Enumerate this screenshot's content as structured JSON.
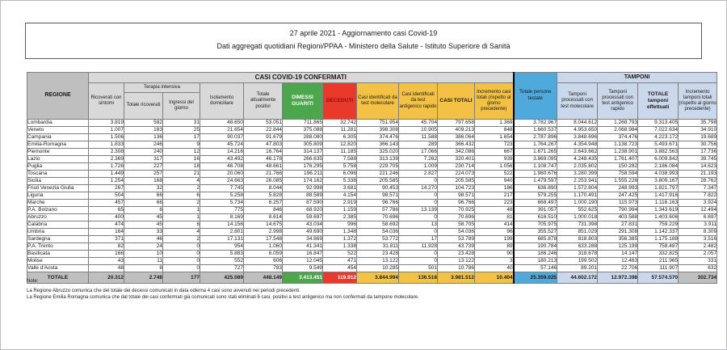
{
  "title": {
    "line1": "27 aprile 2021 - Aggiornamento casi Covid-19",
    "line2": "Dati aggregati quotidiani Regioni/PPAA - Ministero della Salute - Istituto Superiore di Sanità"
  },
  "table": {
    "header": {
      "regione": "REGIONE",
      "casi_confermati_band": "CASI COVID-19 CONFERMATI",
      "ricoverati": "Ricoverati con sintomi",
      "terapia_intensiva": "Terapia intensiva",
      "totale_ricoverati": "Totale ricoverati",
      "ingressi_giorno": "Ingressi del giorno",
      "isolamento": "Isolamento domiciliare",
      "attualmente_positivi": "Totale attualmente positivi",
      "dimessi_guariti": "DIMESSI GUARITI",
      "deceduti": "DECEDUTI",
      "casi_molecolare": "Casi identificati da test molecolare",
      "casi_antigenico": "Casi identificati da test antigenico rapido",
      "casi_totali": "CASI TOTALI",
      "incremento_casi": "Incremento casi totali (rispetto al giorno precedente)",
      "persone_testate": "Totale persone testate",
      "tamponi_band": "TAMPONI",
      "tamponi_molecolare": "Tamponi processati con test molecolare",
      "tamponi_antigenico": "Tamponi processati con test antigenico rapido",
      "tamponi_totale": "TOTALE tamponi effettuati",
      "incremento_tamponi": "Incremento tamponi totali (rispetto al giorno precedente)"
    },
    "rows": [
      {
        "region": "Lombardia",
        "values": [
          "3.819",
          "582",
          "31",
          "48.650",
          "53.051",
          "711.865",
          "32.742",
          "751.954",
          "45.704",
          "797.658",
          "1.369",
          "3.782.967",
          "8.044.612",
          "1.268.793",
          "9.313.405",
          "35.798"
        ]
      },
      {
        "region": "Veneto",
        "values": [
          "1.007",
          "183",
          "25",
          "21.654",
          "22.844",
          "375.088",
          "11.281",
          "398.308",
          "10.905",
          "409.213",
          "848",
          "1.660.537",
          "4.953.650",
          "2.068.984",
          "7.022.634",
          "34.910"
        ]
      },
      {
        "region": "Campania",
        "values": [
          "1.506",
          "136",
          "17",
          "90.037",
          "91.679",
          "288.080",
          "6.305",
          "374.476",
          "11.588",
          "386.064",
          "1.654",
          "2.787.896",
          "3.848.696",
          "374.476",
          "4.223.172",
          "19.689"
        ]
      },
      {
        "region": "Emilia-Romagna",
        "values": [
          "1.833",
          "246",
          "9",
          "45.724",
          "47.803",
          "305.809",
          "12.820",
          "366.143",
          "289",
          "366.432",
          "723",
          "1.764.267",
          "4.354.948",
          "1.138.723",
          "5.493.671",
          "30.756"
        ]
      },
      {
        "region": "Piemonte",
        "values": [
          "2.308",
          "240",
          "12",
          "14.216",
          "16.764",
          "314.137",
          "11.185",
          "325.020",
          "17.066",
          "342.086",
          "667",
          "1.671.265",
          "2.643.662",
          "1.238.901",
          "3.882.563",
          "17.736"
        ]
      },
      {
        "region": "Lazio",
        "values": [
          "2.369",
          "317",
          "16",
          "43.492",
          "46.178",
          "266.635",
          "7.588",
          "313.139",
          "7.262",
          "320.401",
          "939",
          "3.869.095",
          "4.248.435",
          "1.761.407",
          "6.009.842",
          "39.745"
        ]
      },
      {
        "region": "Puglia",
        "values": [
          "1.726",
          "227",
          "18",
          "46.708",
          "48.661",
          "176.295",
          "5.758",
          "229.705",
          "1.009",
          "230.714",
          "1.056",
          "1.108.747",
          "2.035.802",
          "150.282",
          "2.186.084",
          "14.623"
        ]
      },
      {
        "region": "Toscana",
        "values": [
          "1.449",
          "257",
          "21",
          "20.060",
          "21.766",
          "196.211",
          "6.096",
          "221.246",
          "2.827",
          "224.073",
          "522",
          "1.980.676",
          "3.280.399",
          "758.594",
          "4.038.993",
          "21.193"
        ]
      },
      {
        "region": "Sicilia",
        "values": [
          "1.254",
          "168",
          "4",
          "24.663",
          "26.085",
          "174.162",
          "5.338",
          "205.585",
          "0",
          "205.585",
          "940",
          "1.479.597",
          "2.253.941",
          "1.555.226",
          "3.809.167",
          "28.762"
        ]
      },
      {
        "region": "Friuli Venezia Giulia",
        "values": [
          "267",
          "32",
          "2",
          "7.745",
          "8.044",
          "92.998",
          "3.681",
          "90.453",
          "14.270",
          "104.723",
          "186",
          "636.890",
          "1.572.804",
          "248.993",
          "1.821.797",
          "7.347"
        ]
      },
      {
        "region": "Liguria",
        "values": [
          "504",
          "66",
          "6",
          "5.258",
          "5.828",
          "88.589",
          "4.154",
          "98.571",
          "0",
          "98.571",
          "217",
          "579.255",
          "1.170.491",
          "247.425",
          "1.417.916",
          "7.822"
        ]
      },
      {
        "region": "Marche",
        "values": [
          "457",
          "66",
          "2",
          "5.734",
          "6.257",
          "87.590",
          "2.919",
          "96.766",
          "0",
          "96.766",
          "223",
          "668.497",
          "1.000.190",
          "115.973",
          "1.116.163",
          "3.924"
        ]
      },
      {
        "region": "P.A. Bolzano",
        "values": [
          "65",
          "6",
          "1",
          "775",
          "846",
          "68.920",
          "1.159",
          "57.786",
          "13.139",
          "70.925",
          "48",
          "391.057",
          "552.625",
          "790.994",
          "1.343.619",
          "12.494"
        ]
      },
      {
        "region": "Abruzzo",
        "values": [
          "400",
          "45",
          "1",
          "8.169",
          "8.614",
          "59.697",
          "2.385",
          "70.696",
          "0",
          "70.696",
          "81",
          "616.510",
          "1.000.018",
          "403.588",
          "1.403.606",
          "6.697"
        ]
      },
      {
        "region": "Calabria",
        "values": [
          "474",
          "45",
          "6",
          "14.156",
          "14.675",
          "43.034",
          "996",
          "58.692",
          "13",
          "58.705",
          "414",
          "705.975",
          "731.398",
          "27.831",
          "759.229",
          "3.911"
        ]
      },
      {
        "region": "Umbria",
        "values": [
          "164",
          "33",
          "4",
          "2.801",
          "2.998",
          "49.690",
          "1.348",
          "54.036",
          "0",
          "54.036",
          "96",
          "355.527",
          "851.029",
          "291.308",
          "1.142.337",
          "8.309"
        ]
      },
      {
        "region": "Sardegna",
        "values": [
          "371",
          "46",
          "2",
          "17.131",
          "17.548",
          "34.869",
          "1.372",
          "53.772",
          "17",
          "53.789",
          "199",
          "685.878",
          "818.803",
          "356.385",
          "1.175.188",
          "3.516"
        ]
      },
      {
        "region": "P.A. Trento",
        "values": [
          "82",
          "24",
          "0",
          "954",
          "1.060",
          "41.341",
          "1.338",
          "31.811",
          "11.928",
          "43.739",
          "89",
          "190.784",
          "633.288",
          "125.199",
          "758.487",
          "2.482"
        ]
      },
      {
        "region": "Basilicata",
        "values": [
          "166",
          "10",
          "0",
          "5.883",
          "6.059",
          "16.847",
          "522",
          "23.428",
          "0",
          "23.428",
          "90",
          "186.246",
          "318.678",
          "14.147",
          "332.825",
          "2.057"
        ]
      },
      {
        "region": "Molise",
        "values": [
          "43",
          "11",
          "0",
          "552",
          "606",
          "12.045",
          "471",
          "13.122",
          "0",
          "13.122",
          "3",
          "180.213",
          "199.502",
          "12.463",
          "211.965",
          "331"
        ]
      },
      {
        "region": "Valle d'Aosta",
        "values": [
          "48",
          "8",
          "0",
          "727",
          "783",
          "9.549",
          "454",
          "10.285",
          "501",
          "10.786",
          "40",
          "57.146",
          "89.201",
          "22.706",
          "111.907",
          "632"
        ]
      }
    ],
    "total_row": {
      "region": "TOTALE",
      "values": [
        "20.312",
        "2.748",
        "177",
        "425.089",
        "448.149",
        "3.413.451",
        "119.912",
        "3.844.994",
        "136.518",
        "3.981.512",
        "10.404",
        "25.359.025",
        "44.602.172",
        "12.972.398",
        "57.574.570",
        "302.734"
      ]
    }
  },
  "notes": {
    "title": "Note:",
    "lines": [
      "La Regione Abruzzo comunica che del totale dei decessi comunicati in data odierna 4 casi sono avvenuti nei periodi precedenti.",
      "La Regione Emilia Romagna comunica che dal totale dei casi confermati già comunicati sono stati eliminati 6 casi, positivi a test antigenico ma non confermati da tampone molecolare."
    ]
  },
  "colors": {
    "header_gray": "#BFBFBF",
    "band_gray": "#D9D9D9",
    "green": "#4CA64C",
    "red": "#E8392A",
    "red_header_text": "#8B1010",
    "gold": "#F3C244",
    "blue": "#4FA9DC",
    "light_blue": "#CBD7EA"
  }
}
